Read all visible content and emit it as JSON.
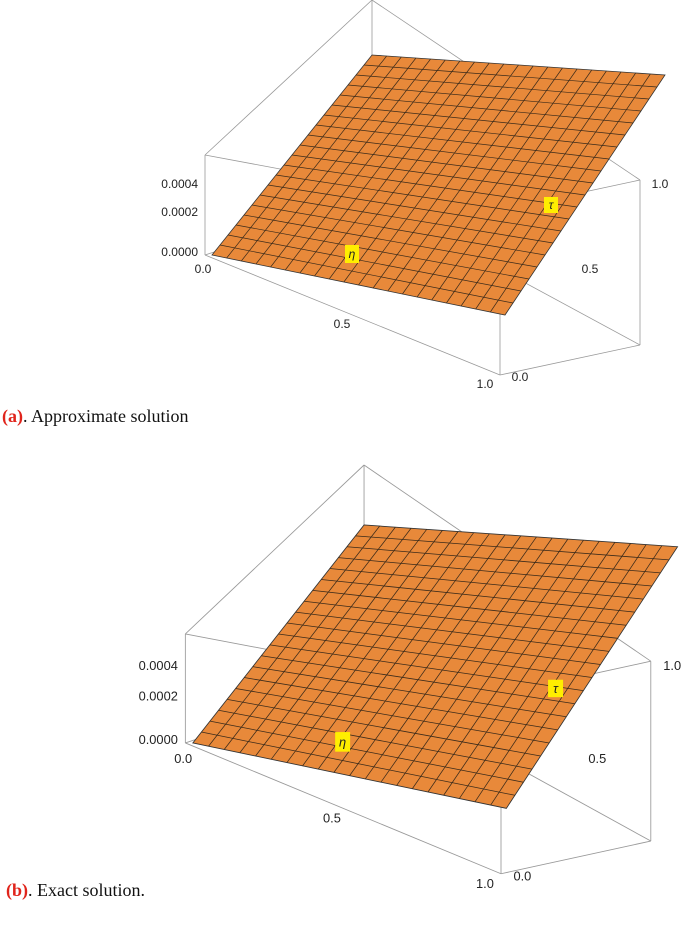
{
  "figures": [
    {
      "caption": {
        "label": "(a)",
        "text": ". Approximate solution"
      },
      "z_ticks": [
        "0.0000",
        "0.0002",
        "0.0004"
      ],
      "eta_ticks": [
        "0.0",
        "0.5",
        "1.0"
      ],
      "tau_ticks": [
        "0.0",
        "0.5",
        "1.0"
      ],
      "eta_label": "η",
      "tau_label": "τ"
    },
    {
      "caption": {
        "label": "(b)",
        "text": ". Exact solution."
      },
      "z_ticks": [
        "0.0000",
        "0.0002",
        "0.0004"
      ],
      "eta_ticks": [
        "0.0",
        "0.5",
        "1.0"
      ],
      "tau_ticks": [
        "0.0",
        "0.5",
        "1.0"
      ],
      "eta_label": "η",
      "tau_label": "τ"
    }
  ]
}
